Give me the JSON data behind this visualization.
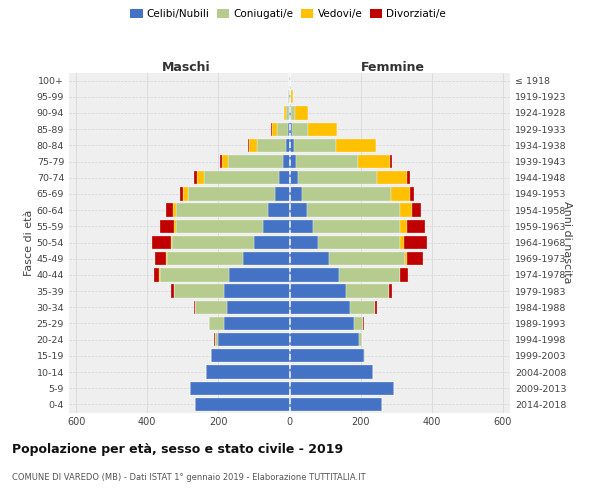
{
  "age_groups": [
    "0-4",
    "5-9",
    "10-14",
    "15-19",
    "20-24",
    "25-29",
    "30-34",
    "35-39",
    "40-44",
    "45-49",
    "50-54",
    "55-59",
    "60-64",
    "65-69",
    "70-74",
    "75-79",
    "80-84",
    "85-89",
    "90-94",
    "95-99",
    "100+"
  ],
  "birth_years": [
    "2014-2018",
    "2009-2013",
    "2004-2008",
    "1999-2003",
    "1994-1998",
    "1989-1993",
    "1984-1988",
    "1979-1983",
    "1974-1978",
    "1969-1973",
    "1964-1968",
    "1959-1963",
    "1954-1958",
    "1949-1953",
    "1944-1948",
    "1939-1943",
    "1934-1938",
    "1929-1933",
    "1924-1928",
    "1919-1923",
    "≤ 1918"
  ],
  "males": {
    "celibe": [
      265,
      280,
      235,
      220,
      200,
      185,
      175,
      185,
      170,
      130,
      100,
      75,
      60,
      40,
      30,
      18,
      10,
      5,
      2,
      1,
      1
    ],
    "coniugato": [
      0,
      0,
      0,
      2,
      10,
      40,
      90,
      140,
      195,
      215,
      230,
      245,
      260,
      245,
      210,
      155,
      80,
      30,
      8,
      2,
      0
    ],
    "vedovo": [
      0,
      0,
      0,
      0,
      0,
      0,
      0,
      0,
      1,
      2,
      3,
      5,
      8,
      15,
      20,
      18,
      25,
      15,
      5,
      1,
      0
    ],
    "divorziato": [
      0,
      0,
      0,
      0,
      1,
      2,
      3,
      8,
      15,
      30,
      55,
      40,
      20,
      8,
      8,
      5,
      2,
      1,
      0,
      0,
      0
    ]
  },
  "females": {
    "nubile": [
      260,
      295,
      235,
      210,
      195,
      180,
      170,
      160,
      140,
      110,
      80,
      65,
      50,
      35,
      25,
      18,
      12,
      8,
      4,
      2,
      1
    ],
    "coniugata": [
      0,
      0,
      0,
      1,
      8,
      28,
      70,
      120,
      170,
      215,
      230,
      245,
      260,
      250,
      220,
      175,
      120,
      45,
      12,
      3,
      0
    ],
    "vedova": [
      0,
      0,
      0,
      0,
      0,
      0,
      0,
      1,
      2,
      5,
      12,
      20,
      35,
      55,
      85,
      90,
      110,
      80,
      35,
      5,
      0
    ],
    "divorziata": [
      0,
      0,
      0,
      0,
      1,
      2,
      5,
      8,
      20,
      45,
      65,
      50,
      25,
      10,
      8,
      5,
      2,
      1,
      0,
      0,
      0
    ]
  },
  "colors": {
    "celibe": "#4472c4",
    "coniugato": "#b5cc8e",
    "vedovo": "#ffc000",
    "divorziato": "#c00000"
  },
  "xlim": 620,
  "title": "Popolazione per età, sesso e stato civile - 2019",
  "subtitle": "COMUNE DI VAREDO (MB) - Dati ISTAT 1° gennaio 2019 - Elaborazione TUTTITALIA.IT",
  "ylabel_left": "Fasce di età",
  "ylabel_right": "Anni di nascita",
  "xlabel_maschi": "Maschi",
  "xlabel_femmine": "Femmine",
  "legend_labels": [
    "Celibi/Nubili",
    "Coniugati/e",
    "Vedovi/e",
    "Divorziati/e"
  ],
  "bg_color": "#efefef",
  "grid_color": "#d4d4d4"
}
